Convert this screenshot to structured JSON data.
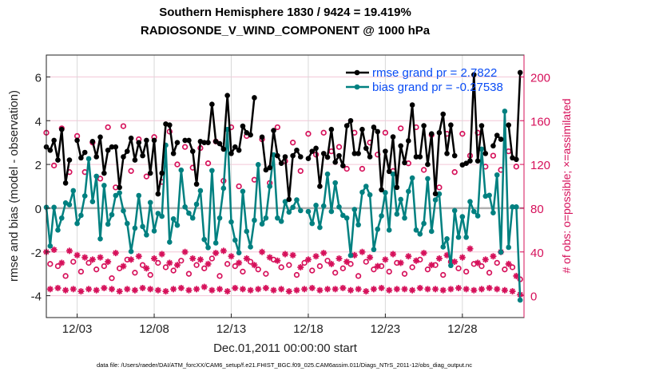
{
  "chart_data": {
    "type": "line",
    "title": [
      "Southern Hemisphere 1830 / 9424 = 19.419%",
      "RADIOSONDE_V_WIND_COMPONENT @ 1000 hPa"
    ],
    "xlabel": "Dec.01,2011 00:00:00 start",
    "ylabel": "rmse and bias (model - observation)",
    "ylabel_right": "# of obs: o=possible; ×=assimilated",
    "footnote": "data file: /Users/raeder/DAI/ATM_forcXX/CAM6_setup/f.e21.FHIST_BGC.f09_025.CAM6assim.011/Diags_NTrS_2011-12/obs_diag_output.nc",
    "xlim_days": [
      0,
      31
    ],
    "ylim": [
      -5,
      7
    ],
    "ylim_right": [
      -20,
      220
    ],
    "x_start_day": 0,
    "x_step_days": 0.25,
    "xticks": [
      {
        "day": 2,
        "label": "12/03"
      },
      {
        "day": 7,
        "label": "12/08"
      },
      {
        "day": 12,
        "label": "12/13"
      },
      {
        "day": 17,
        "label": "12/18"
      },
      {
        "day": 22,
        "label": "12/23"
      },
      {
        "day": 27,
        "label": "12/28"
      }
    ],
    "yticks": [
      {
        "value": 6,
        "label": "6"
      },
      {
        "value": 4,
        "label": "4"
      },
      {
        "value": 2,
        "label": "2"
      },
      {
        "value": 0,
        "label": "0"
      },
      {
        "value": -2,
        "label": "-2"
      },
      {
        "value": -4,
        "label": "-4"
      }
    ],
    "yticks_right": [
      {
        "value": 200,
        "label": "200"
      },
      {
        "value": 160,
        "label": "160"
      },
      {
        "value": 120,
        "label": "120"
      },
      {
        "value": 80,
        "label": "80"
      },
      {
        "value": 40,
        "label": "40"
      },
      {
        "value": 0,
        "label": "0"
      }
    ],
    "grid": true,
    "legend_position": "top-right",
    "colors": {
      "rmse": "#000000",
      "bias": "#008080",
      "obs": "#d6105a",
      "legend_text": "#0a4cf5",
      "grid_h": "#f2c6d6",
      "grid_v": "#d9d9d9",
      "zero": "#b0b0b0"
    },
    "series": [
      {
        "name": "rmse grand pr = 2.7822",
        "key": "rmse",
        "values": [
          2.8,
          2.65,
          3.1,
          2.2,
          3.6,
          1.15,
          2.2,
          null,
          3.1,
          2.3,
          2.55,
          null,
          3.05,
          2.35,
          3.25,
          1.6,
          2.65,
          2.8,
          2.8,
          0.95,
          2.35,
          2.6,
          3.2,
          2.2,
          3.0,
          2.4,
          3.1,
          1.6,
          3.1,
          0.65,
          1.6,
          3.85,
          3.8,
          2.5,
          3.0,
          null,
          3.1,
          3.1,
          2.6,
          1.1,
          3.05,
          3.0,
          3.0,
          4.75,
          3.05,
          2.95,
          2.7,
          5.15,
          2.5,
          2.8,
          2.65,
          3.75,
          3.45,
          3.35,
          5.05,
          null,
          3.25,
          1.75,
          1.85,
          3.55,
          2.4,
          2.05,
          2.35,
          0.4,
          2.4,
          2.65,
          2.35,
          null,
          2.27,
          2.6,
          2.74,
          1.0,
          2.5,
          2.33,
          3.6,
          2.1,
          2.4,
          1.94,
          3.77,
          4.0,
          2.5,
          2.5,
          3.6,
          2.74,
          2.35,
          3.7,
          3.5,
          0.84,
          2.6,
          1.68,
          3.26,
          0.95,
          2.85,
          2.08,
          3.08,
          4.72,
          2.35,
          2.35,
          3.77,
          2.0,
          3.4,
          0.66,
          3.45,
          4.3,
          2.5,
          3.8,
          2.4,
          null,
          1.98,
          2.05,
          2.16,
          6.1,
          2.16,
          3.77,
          2.5,
          null,
          2.85,
          3.33,
          3.15,
          null,
          3.8,
          2.3,
          2.23,
          6.2
        ]
      },
      {
        "name": "bias grand pr = -0.27538",
        "key": "bias",
        "values": [
          0.04,
          -1.73,
          0.04,
          -1.0,
          -0.45,
          0.24,
          0.16,
          0.8,
          -0.7,
          -0.33,
          0.56,
          2.26,
          0.3,
          1.46,
          -1.4,
          1.04,
          -0.73,
          -0.3,
          0.58,
          0.7,
          -0.12,
          -0.7,
          -1.98,
          -0.91,
          0.58,
          -0.84,
          -1.22,
          0.26,
          -1.04,
          -0.24,
          -0.37,
          2.88,
          -1.55,
          -0.49,
          -0.78,
          1.74,
          0.06,
          -0.23,
          -0.45,
          0.18,
          0.8,
          -1.43,
          -1.8,
          1.72,
          -1.59,
          -0.45,
          0.91,
          3.6,
          -0.63,
          -1.46,
          -2.04,
          0.77,
          -1.06,
          -1.77,
          -0.55,
          1.99,
          -0.72,
          -0.45,
          1.0,
          2.44,
          -0.45,
          -0.6,
          0.3,
          -0.18,
          0.04,
          0.38,
          -0.11,
          null,
          -0.15,
          -0.7,
          0.13,
          -0.88,
          0.1,
          1.56,
          -0.15,
          1.16,
          0.06,
          -0.33,
          -0.45,
          -2.16,
          -0.06,
          -0.76,
          0.73,
          1.0,
          0.61,
          -1.89,
          -0.96,
          -0.35,
          0.71,
          -1.0,
          1.56,
          -0.27,
          0.4,
          -0.45,
          0.77,
          1.38,
          -1.0,
          -1.18,
          -0.7,
          1.35,
          -1.06,
          0.38,
          0.65,
          -1.77,
          -1.4,
          -2.62,
          -0.11,
          -1.33,
          -0.39,
          -1.33,
          0.3,
          -0.15,
          -0.35,
          2.7,
          0.55,
          0.59,
          -0.21,
          1.52,
          -2.01,
          4.43,
          -1.79,
          0.06,
          0.06,
          -4.2
        ]
      },
      {
        "name": "obs possible",
        "key": "possible",
        "axis": "right",
        "values": [
          149,
          29,
          119,
          27,
          153,
          18,
          113,
          31,
          146,
          22,
          113,
          30,
          140,
          24,
          107,
          27,
          154,
          16,
          99,
          25,
          155,
          33,
          114,
          21,
          143,
          28,
          109,
          19,
          145,
          30,
          104,
          26,
          150,
          23,
          120,
          32,
          136,
          20,
          117,
          28,
          135,
          25,
          121,
          34,
          141,
          18,
          105,
          29,
          154,
          27,
          100,
          22,
          146,
          31,
          106,
          24,
          143,
          20,
          103,
          33,
          154,
          26,
          123,
          28,
          140,
          19,
          114,
          30,
          148,
          23,
          129,
          27,
          149,
          32,
          132,
          21,
          136,
          25,
          116,
          29,
          149,
          18,
          116,
          31,
          140,
          24,
          129,
          27,
          149,
          22,
          114,
          30,
          153,
          20,
          121,
          26,
          154,
          33,
          115,
          24,
          147,
          28,
          99,
          19,
          148,
          31,
          113,
          25,
          148,
          22,
          128,
          29,
          149,
          27,
          118,
          21,
          128,
          30,
          115,
          24,
          132,
          26,
          118,
          15
        ]
      },
      {
        "name": "obs assimilated",
        "key": "assimilated",
        "axis": "right",
        "values": [
          40,
          6,
          42,
          7,
          30,
          5,
          41,
          6,
          37,
          4,
          35,
          6,
          33,
          5,
          35,
          7,
          31,
          6,
          39,
          4,
          27,
          6,
          33,
          5,
          36,
          7,
          25,
          6,
          34,
          5,
          38,
          4,
          30,
          6,
          28,
          7,
          40,
          5,
          34,
          6,
          33,
          8,
          29,
          5,
          39,
          6,
          41,
          4,
          36,
          7,
          30,
          6,
          34,
          5,
          28,
          6,
          40,
          7,
          35,
          5,
          32,
          6,
          38,
          4,
          37,
          5,
          26,
          6,
          33,
          7,
          36,
          5,
          39,
          6,
          29,
          6,
          34,
          7,
          31,
          5,
          37,
          6,
          40,
          4,
          35,
          6,
          27,
          7,
          33,
          5,
          38,
          6,
          30,
          6,
          36,
          5,
          32,
          7,
          39,
          6,
          28,
          6,
          34,
          5,
          37,
          6,
          31,
          7,
          35,
          6,
          43,
          5,
          30,
          6,
          33,
          7,
          36,
          6,
          40,
          5,
          29,
          4,
          18,
          1
        ]
      }
    ]
  }
}
